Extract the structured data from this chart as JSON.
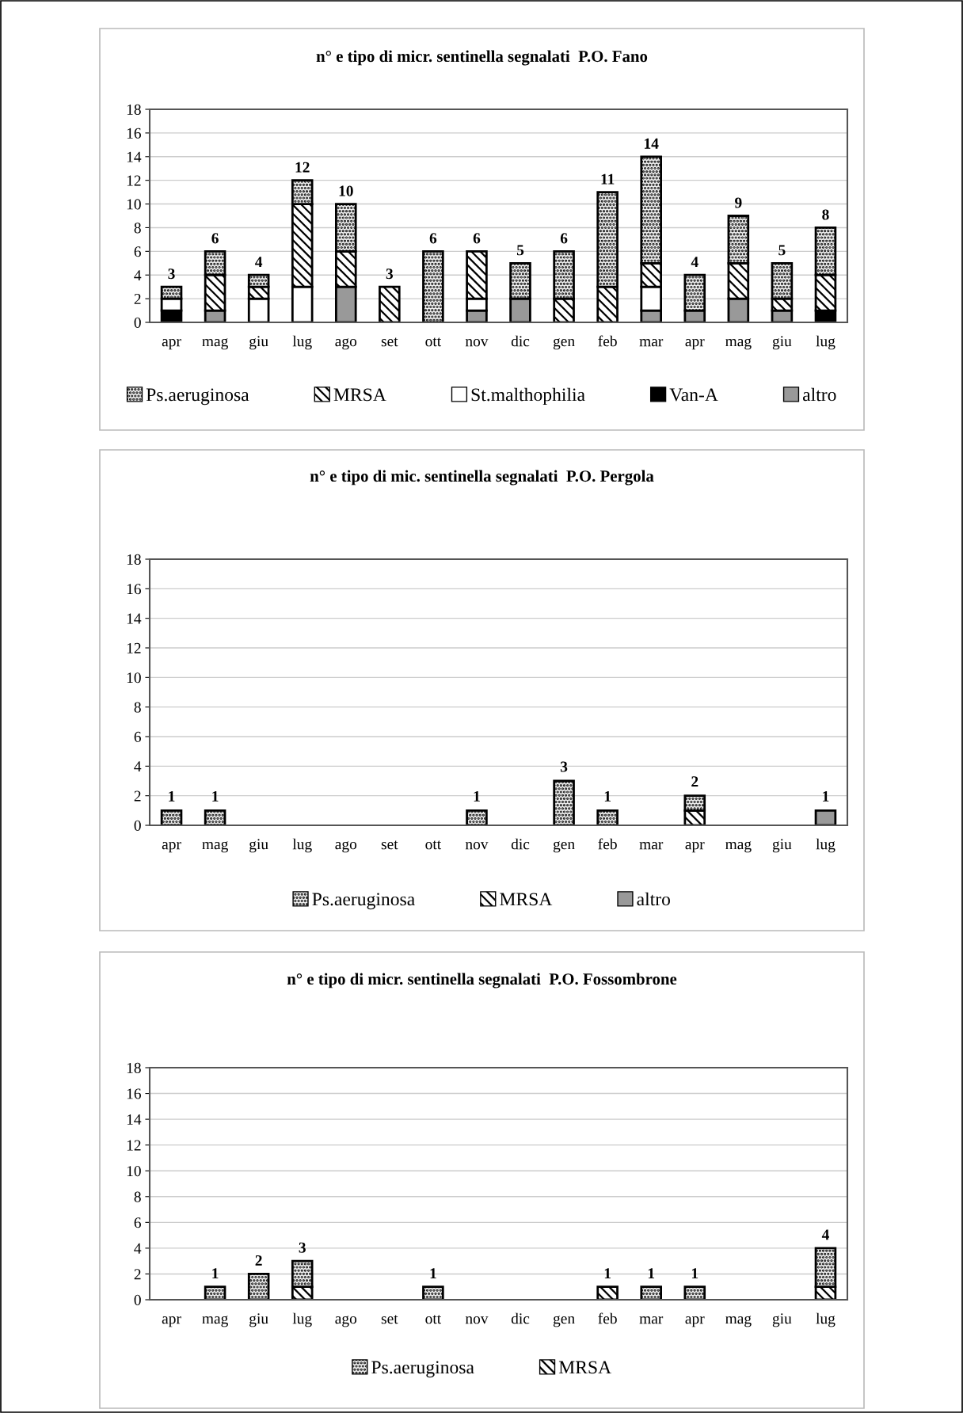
{
  "chart_data": [
    {
      "type": "bar",
      "title": "n° e tipo di micr. sentinella segnalati  P.O. Fano",
      "stacked": true,
      "categories": [
        "apr",
        "mag",
        "giu",
        "lug",
        "ago",
        "set",
        "ott",
        "nov",
        "dic",
        "gen",
        "feb",
        "mar",
        "apr",
        "mag",
        "giu",
        "lug"
      ],
      "ylim": [
        0,
        18
      ],
      "yticks": [
        0,
        2,
        4,
        6,
        8,
        10,
        12,
        14,
        16,
        18
      ],
      "grid": "y",
      "legend": "bottom",
      "series": [
        {
          "name": "altro",
          "color": "#999999",
          "values": [
            0,
            1,
            0,
            0,
            3,
            0,
            0,
            1,
            2,
            0,
            0,
            1,
            1,
            2,
            1,
            0
          ]
        },
        {
          "name": "Van-A",
          "color": "#000000",
          "values": [
            1,
            0,
            0,
            0,
            0,
            0,
            0,
            0,
            0,
            0,
            0,
            0,
            0,
            0,
            0,
            1
          ]
        },
        {
          "name": "St.malthophilia",
          "color": "#ffffff",
          "values": [
            1,
            0,
            2,
            3,
            0,
            0,
            0,
            1,
            0,
            0,
            0,
            2,
            0,
            0,
            0,
            0
          ]
        },
        {
          "name": "MRSA",
          "color": "#fefefe",
          "values": [
            0,
            3,
            1,
            7,
            3,
            3,
            0,
            4,
            0,
            2,
            3,
            2,
            0,
            3,
            1,
            3
          ]
        },
        {
          "name": "Ps.aeruginosa",
          "color": "#ececec",
          "values": [
            1,
            2,
            1,
            2,
            4,
            0,
            6,
            0,
            3,
            4,
            8,
            9,
            3,
            4,
            3,
            4
          ]
        }
      ],
      "totals": [
        "3",
        "6",
        "4",
        "12",
        "10",
        "3",
        "6",
        "6",
        "5",
        "6",
        "11",
        "14",
        "4",
        "9",
        "5",
        "8"
      ]
    },
    {
      "type": "bar",
      "title": "n° e tipo di mic. sentinella segnalati  P.O. Pergola",
      "stacked": true,
      "categories": [
        "apr",
        "mag",
        "giu",
        "lug",
        "ago",
        "set",
        "ott",
        "nov",
        "dic",
        "gen",
        "feb",
        "mar",
        "apr",
        "mag",
        "giu",
        "lug"
      ],
      "ylim": [
        0,
        18
      ],
      "yticks": [
        0,
        2,
        4,
        6,
        8,
        10,
        12,
        14,
        16,
        18
      ],
      "grid": "y",
      "legend": "bottom",
      "series": [
        {
          "name": "altro",
          "color": "#999999",
          "values": [
            0,
            0,
            0,
            0,
            0,
            0,
            0,
            0,
            0,
            0,
            0,
            0,
            0,
            0,
            0,
            1
          ]
        },
        {
          "name": "MRSA",
          "color": "#fefefe",
          "values": [
            0,
            0,
            0,
            0,
            0,
            0,
            0,
            0,
            0,
            0,
            0,
            0,
            1,
            0,
            0,
            0
          ]
        },
        {
          "name": "Ps.aeruginosa",
          "color": "#ececec",
          "values": [
            1,
            1,
            0,
            0,
            0,
            0,
            0,
            1,
            0,
            3,
            1,
            0,
            1,
            0,
            0,
            0
          ]
        }
      ],
      "totals": [
        "1",
        "1",
        null,
        null,
        null,
        null,
        null,
        "1",
        null,
        "3",
        "1",
        null,
        "2",
        null,
        null,
        "1"
      ]
    },
    {
      "type": "bar",
      "title": "n° e tipo di micr. sentinella segnalati  P.O. Fossombrone",
      "stacked": true,
      "categories": [
        "apr",
        "mag",
        "giu",
        "lug",
        "ago",
        "set",
        "ott",
        "nov",
        "dic",
        "gen",
        "feb",
        "mar",
        "apr",
        "mag",
        "giu",
        "lug"
      ],
      "ylim": [
        0,
        18
      ],
      "yticks": [
        0,
        2,
        4,
        6,
        8,
        10,
        12,
        14,
        16,
        18
      ],
      "grid": "y",
      "legend": "bottom",
      "series": [
        {
          "name": "MRSA",
          "color": "#fefefe",
          "values": [
            0,
            0,
            0,
            1,
            0,
            0,
            0,
            0,
            0,
            0,
            1,
            0,
            0,
            0,
            0,
            1
          ]
        },
        {
          "name": "Ps.aeruginosa",
          "color": "#ececec",
          "values": [
            0,
            1,
            2,
            2,
            0,
            0,
            1,
            0,
            0,
            0,
            0,
            1,
            1,
            0,
            0,
            3
          ]
        }
      ],
      "totals": [
        null,
        "1",
        "2",
        "3",
        null,
        null,
        "1",
        null,
        null,
        null,
        "1",
        "1",
        "1",
        null,
        null,
        "4"
      ]
    }
  ]
}
